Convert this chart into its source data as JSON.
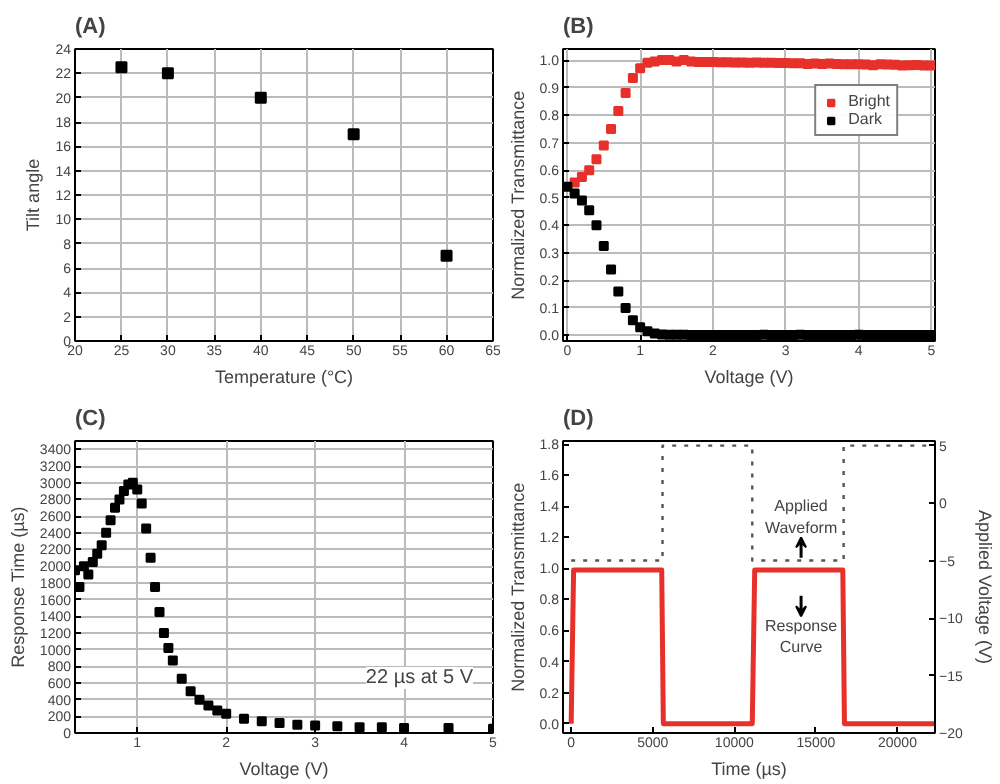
{
  "chart_data": [
    {
      "type": "scatter",
      "title": "(A)",
      "xlabel": "Temperature (°C)",
      "ylabel": "Tilt angle",
      "xlim": [
        20,
        65
      ],
      "ylim": [
        0,
        24
      ],
      "xticks": [
        20,
        25,
        30,
        35,
        40,
        45,
        50,
        55,
        60,
        65
      ],
      "yticks": [
        0,
        2,
        4,
        6,
        8,
        10,
        12,
        14,
        16,
        18,
        20,
        22,
        24
      ],
      "grid": true,
      "marker": "square",
      "series": [
        {
          "color": "#000000",
          "x": [
            25,
            30,
            40,
            50,
            60
          ],
          "values": [
            22.5,
            22,
            20,
            17,
            7
          ]
        }
      ]
    },
    {
      "type": "scatter",
      "title": "(B)",
      "xlabel": "Voltage (V)",
      "ylabel": "Normalized Transmittance",
      "xlim": [
        -0.06,
        5.05
      ],
      "ylim": [
        -0.02,
        1.04
      ],
      "xticks": [
        0,
        1,
        2,
        3,
        4,
        5
      ],
      "yticks": [
        {
          "value": 0,
          "label": "0.0"
        },
        {
          "value": 0.1,
          "label": "0.1"
        },
        {
          "value": 0.2,
          "label": "0.2"
        },
        {
          "value": 0.3,
          "label": "0.3"
        },
        {
          "value": 0.4,
          "label": "0.4"
        },
        {
          "value": 0.5,
          "label": "0.5"
        },
        {
          "value": 0.6,
          "label": "0.6"
        },
        {
          "value": 0.7,
          "label": "0.7"
        },
        {
          "value": 0.8,
          "label": "0.8"
        },
        {
          "value": 0.9,
          "label": "0.9"
        },
        {
          "value": 1,
          "label": "1.0"
        }
      ],
      "grid": true,
      "legend": "top right",
      "marker": "square",
      "x": [
        0,
        0.1,
        0.2,
        0.3,
        0.4,
        0.5,
        0.6,
        0.7,
        0.8,
        0.9,
        1.0,
        1.1,
        1.2,
        1.3,
        1.4,
        1.5,
        1.6,
        1.7,
        1.8,
        1.9,
        2.0,
        2.1,
        2.2,
        2.3,
        2.4,
        2.5,
        2.6,
        2.7,
        2.8,
        2.9,
        3.0,
        3.1,
        3.2,
        3.3,
        3.4,
        3.5,
        3.6,
        3.7,
        3.8,
        3.9,
        4.0,
        4.1,
        4.2,
        4.3,
        4.4,
        4.5,
        4.6,
        4.7,
        4.8,
        4.9,
        5.0
      ],
      "series": [
        {
          "name": "Bright",
          "color": "#e8302a",
          "values": [
            null,
            0.555,
            0.575,
            0.6,
            0.64,
            0.69,
            0.75,
            0.815,
            0.88,
            0.935,
            0.97,
            0.99,
            0.995,
            1.0,
            1.0,
            0.995,
            1.0,
            0.995,
            0.993,
            0.993,
            0.993,
            0.992,
            0.992,
            0.991,
            0.991,
            0.99,
            0.991,
            0.99,
            0.99,
            0.989,
            0.989,
            0.988,
            0.988,
            0.986,
            0.987,
            0.986,
            0.987,
            0.986,
            0.985,
            0.985,
            0.985,
            0.984,
            0.981,
            0.985,
            0.984,
            0.983,
            0.98,
            0.981,
            0.982,
            0.98,
            0.98
          ]
        },
        {
          "name": "Dark",
          "color": "#000000",
          "values": [
            0.54,
            0.515,
            0.49,
            0.455,
            0.4,
            0.325,
            0.24,
            0.16,
            0.1,
            0.055,
            0.03,
            0.015,
            0.007,
            0.004,
            0.003,
            0.003,
            0.003,
            0.002,
            0.002,
            0.002,
            0.002,
            0.002,
            0.002,
            0.002,
            0.002,
            0.002,
            0.002,
            0.003,
            0.002,
            0.002,
            0.002,
            0.002,
            0.003,
            0.002,
            0.002,
            0.002,
            0.002,
            0.002,
            0.002,
            0.002,
            0.003,
            0.002,
            0.002,
            0.002,
            0.002,
            0.002,
            0.002,
            0.002,
            0.002,
            0.002,
            0.002
          ]
        }
      ]
    },
    {
      "type": "scatter",
      "title": "(C)",
      "xlabel": "Voltage (V)",
      "ylabel": "Response Time (µs)",
      "xlim": [
        0.3,
        5
      ],
      "ylim": [
        0,
        3500
      ],
      "xticks": [
        1,
        2,
        3,
        4,
        5
      ],
      "yticks": [
        0,
        200,
        400,
        600,
        800,
        1000,
        1200,
        1400,
        1600,
        1800,
        2000,
        2200,
        2400,
        2600,
        2800,
        3000,
        3200,
        3400
      ],
      "grid": true,
      "marker": "square",
      "annotations": [
        "22 µs at 5 V"
      ],
      "series": [
        {
          "color": "#000000",
          "x": [
            0.3,
            0.35,
            0.4,
            0.45,
            0.5,
            0.55,
            0.6,
            0.65,
            0.7,
            0.75,
            0.8,
            0.85,
            0.9,
            0.95,
            1.0,
            1.05,
            1.1,
            1.15,
            1.2,
            1.25,
            1.3,
            1.35,
            1.4,
            1.5,
            1.6,
            1.7,
            1.8,
            1.9,
            2.0,
            2.2,
            2.4,
            2.6,
            2.8,
            3.0,
            3.25,
            3.5,
            3.75,
            4.0,
            4.5,
            5.0
          ],
          "values": [
            1950,
            1750,
            2000,
            1900,
            2050,
            2150,
            2250,
            2400,
            2550,
            2700,
            2800,
            2900,
            2980,
            3000,
            2920,
            2750,
            2450,
            2100,
            1750,
            1450,
            1200,
            1020,
            870,
            650,
            500,
            400,
            330,
            270,
            230,
            170,
            140,
            120,
            100,
            90,
            80,
            70,
            70,
            60,
            60,
            50
          ]
        }
      ]
    },
    {
      "type": "line",
      "title": "(D)",
      "xlabel": "Time (µs)",
      "ylabel": "Normalized Transmittance",
      "y2label": "Applied Voltage (V)",
      "xlim": [
        -500,
        22300
      ],
      "ylim": [
        -0.06,
        1.82
      ],
      "y2lim": [
        -20,
        5.4
      ],
      "xticks": [
        0,
        5000,
        10000,
        15000,
        20000
      ],
      "yticks": [
        {
          "value": 0,
          "label": "0.0"
        },
        {
          "value": 0.2,
          "label": "0.2"
        },
        {
          "value": 0.4,
          "label": "0.4"
        },
        {
          "value": 0.6,
          "label": "0.6"
        },
        {
          "value": 0.8,
          "label": "0.8"
        },
        {
          "value": 1,
          "label": "1.0"
        },
        {
          "value": 1.2,
          "label": "1.2"
        },
        {
          "value": 1.4,
          "label": "1.4"
        },
        {
          "value": 1.6,
          "label": "1.6"
        },
        {
          "value": 1.8,
          "label": "1.8"
        }
      ],
      "y2ticks": [
        -20,
        -15,
        -10,
        -5,
        0,
        5
      ],
      "annotations": [
        "Applied\nWaveform",
        "Response\nCurve"
      ],
      "series": [
        {
          "color": "#e8302a",
          "x": [
            0,
            150,
            5550,
            5650,
            11100,
            11250,
            16650,
            16750,
            22300
          ],
          "values": [
            0,
            0.99,
            0.99,
            0,
            0,
            0.99,
            0.99,
            0,
            0
          ]
        },
        {
          "color": "#555555",
          "axis": "y2",
          "line_style": "dotted",
          "x": [
            0,
            5600,
            5600,
            11100,
            11100,
            16700,
            16700,
            22300
          ],
          "values": [
            -5,
            -5,
            5,
            5,
            -5,
            -5,
            5,
            5
          ]
        }
      ]
    }
  ]
}
